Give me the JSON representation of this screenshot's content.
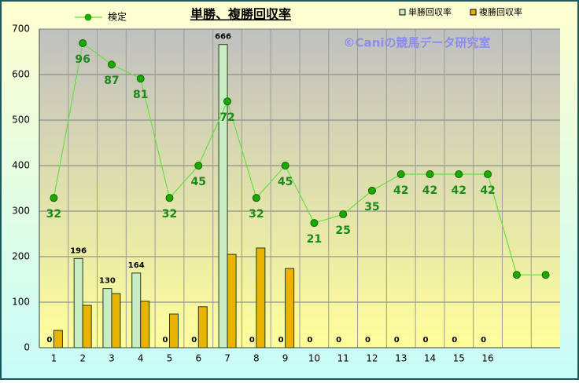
{
  "chart_data": {
    "type": "bar_line",
    "title": "単勝、複勝回収率",
    "watermark": "©Caniの競馬データ研究室",
    "categories": [
      "1",
      "2",
      "3",
      "4",
      "5",
      "6",
      "7",
      "8",
      "9",
      "10",
      "11",
      "12",
      "13",
      "14",
      "15",
      "16",
      null,
      null
    ],
    "series": [
      {
        "name": "検定",
        "kind": "line",
        "color": "#66e040",
        "marker_color": "#1fa800",
        "values": [
          329,
          669,
          622,
          591,
          329,
          400,
          541,
          329,
          400,
          274,
          293,
          345,
          381,
          381,
          381,
          381,
          160,
          160
        ],
        "point_labels": [
          32,
          96,
          87,
          81,
          32,
          45,
          72,
          32,
          45,
          21,
          25,
          35,
          42,
          42,
          42,
          42,
          null,
          null
        ]
      },
      {
        "name": "単勝回収率",
        "kind": "bar",
        "color": "#c8ecc4",
        "values": [
          0,
          196,
          130,
          164,
          0,
          0,
          666,
          0,
          0,
          0,
          0,
          0,
          0,
          0,
          0,
          0,
          null,
          null
        ]
      },
      {
        "name": "複勝回収率",
        "kind": "bar",
        "color": "#e8b400",
        "values": [
          38,
          93,
          119,
          102,
          74,
          90,
          205,
          219,
          174,
          0,
          0,
          0,
          0,
          0,
          0,
          0,
          null,
          null
        ]
      }
    ],
    "ylim": [
      0,
      700
    ],
    "yticks": [
      0,
      100,
      200,
      300,
      400,
      500,
      600,
      700
    ],
    "grid": true
  }
}
